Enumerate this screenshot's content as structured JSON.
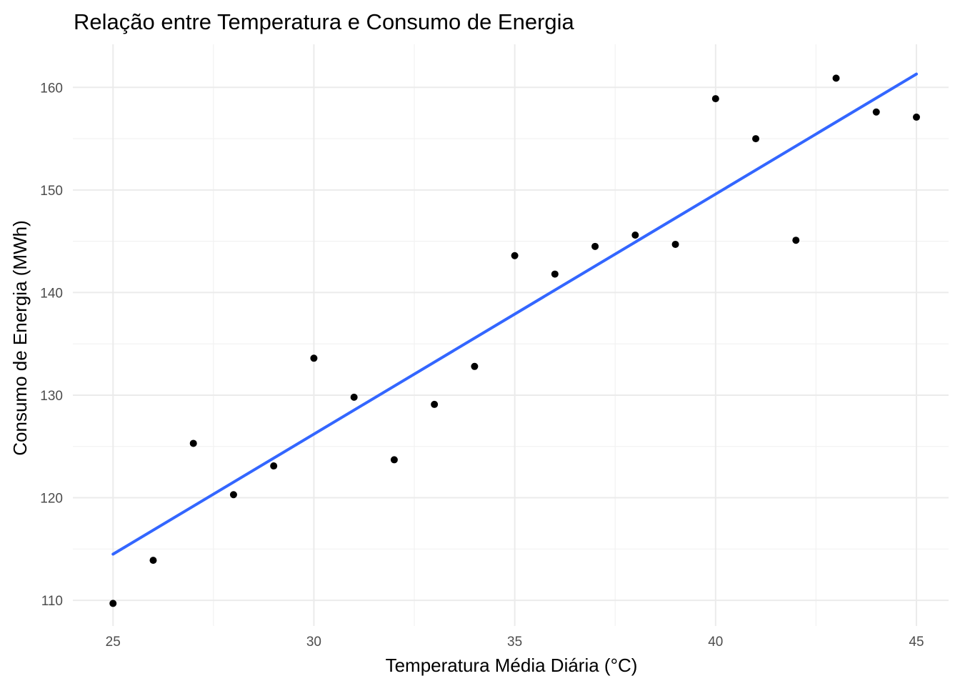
{
  "chart_data": {
    "type": "scatter",
    "title": "Relação entre Temperatura e Consumo de Energia",
    "xlabel": "Temperatura Média Diária (°C)",
    "ylabel": "Consumo de Energia (MWh)",
    "xlim": [
      24,
      45.8
    ],
    "ylim": [
      107.5,
      164.2
    ],
    "x_ticks": [
      25,
      30,
      35,
      40,
      45
    ],
    "x_tick_labels": [
      "25",
      "30",
      "35",
      "40",
      "45"
    ],
    "y_ticks": [
      110,
      120,
      130,
      140,
      150,
      160
    ],
    "y_tick_labels": [
      "110",
      "120",
      "130",
      "140",
      "150",
      "160"
    ],
    "grid": true,
    "series": [
      {
        "type": "scatter",
        "color": "#000000",
        "x": [
          25,
          26,
          27,
          28,
          29,
          30,
          31,
          32,
          33,
          34,
          35,
          36,
          37,
          38,
          39,
          40,
          41,
          42,
          43,
          44,
          45
        ],
        "y": [
          109.7,
          113.9,
          125.3,
          120.3,
          123.1,
          133.6,
          129.8,
          123.7,
          129.1,
          132.8,
          143.6,
          141.8,
          144.5,
          145.6,
          144.7,
          158.9,
          155.0,
          145.1,
          160.9,
          157.6,
          157.1
        ]
      },
      {
        "type": "line",
        "color": "#3366ff",
        "x": [
          25,
          45
        ],
        "y": [
          114.5,
          161.3
        ]
      }
    ]
  }
}
